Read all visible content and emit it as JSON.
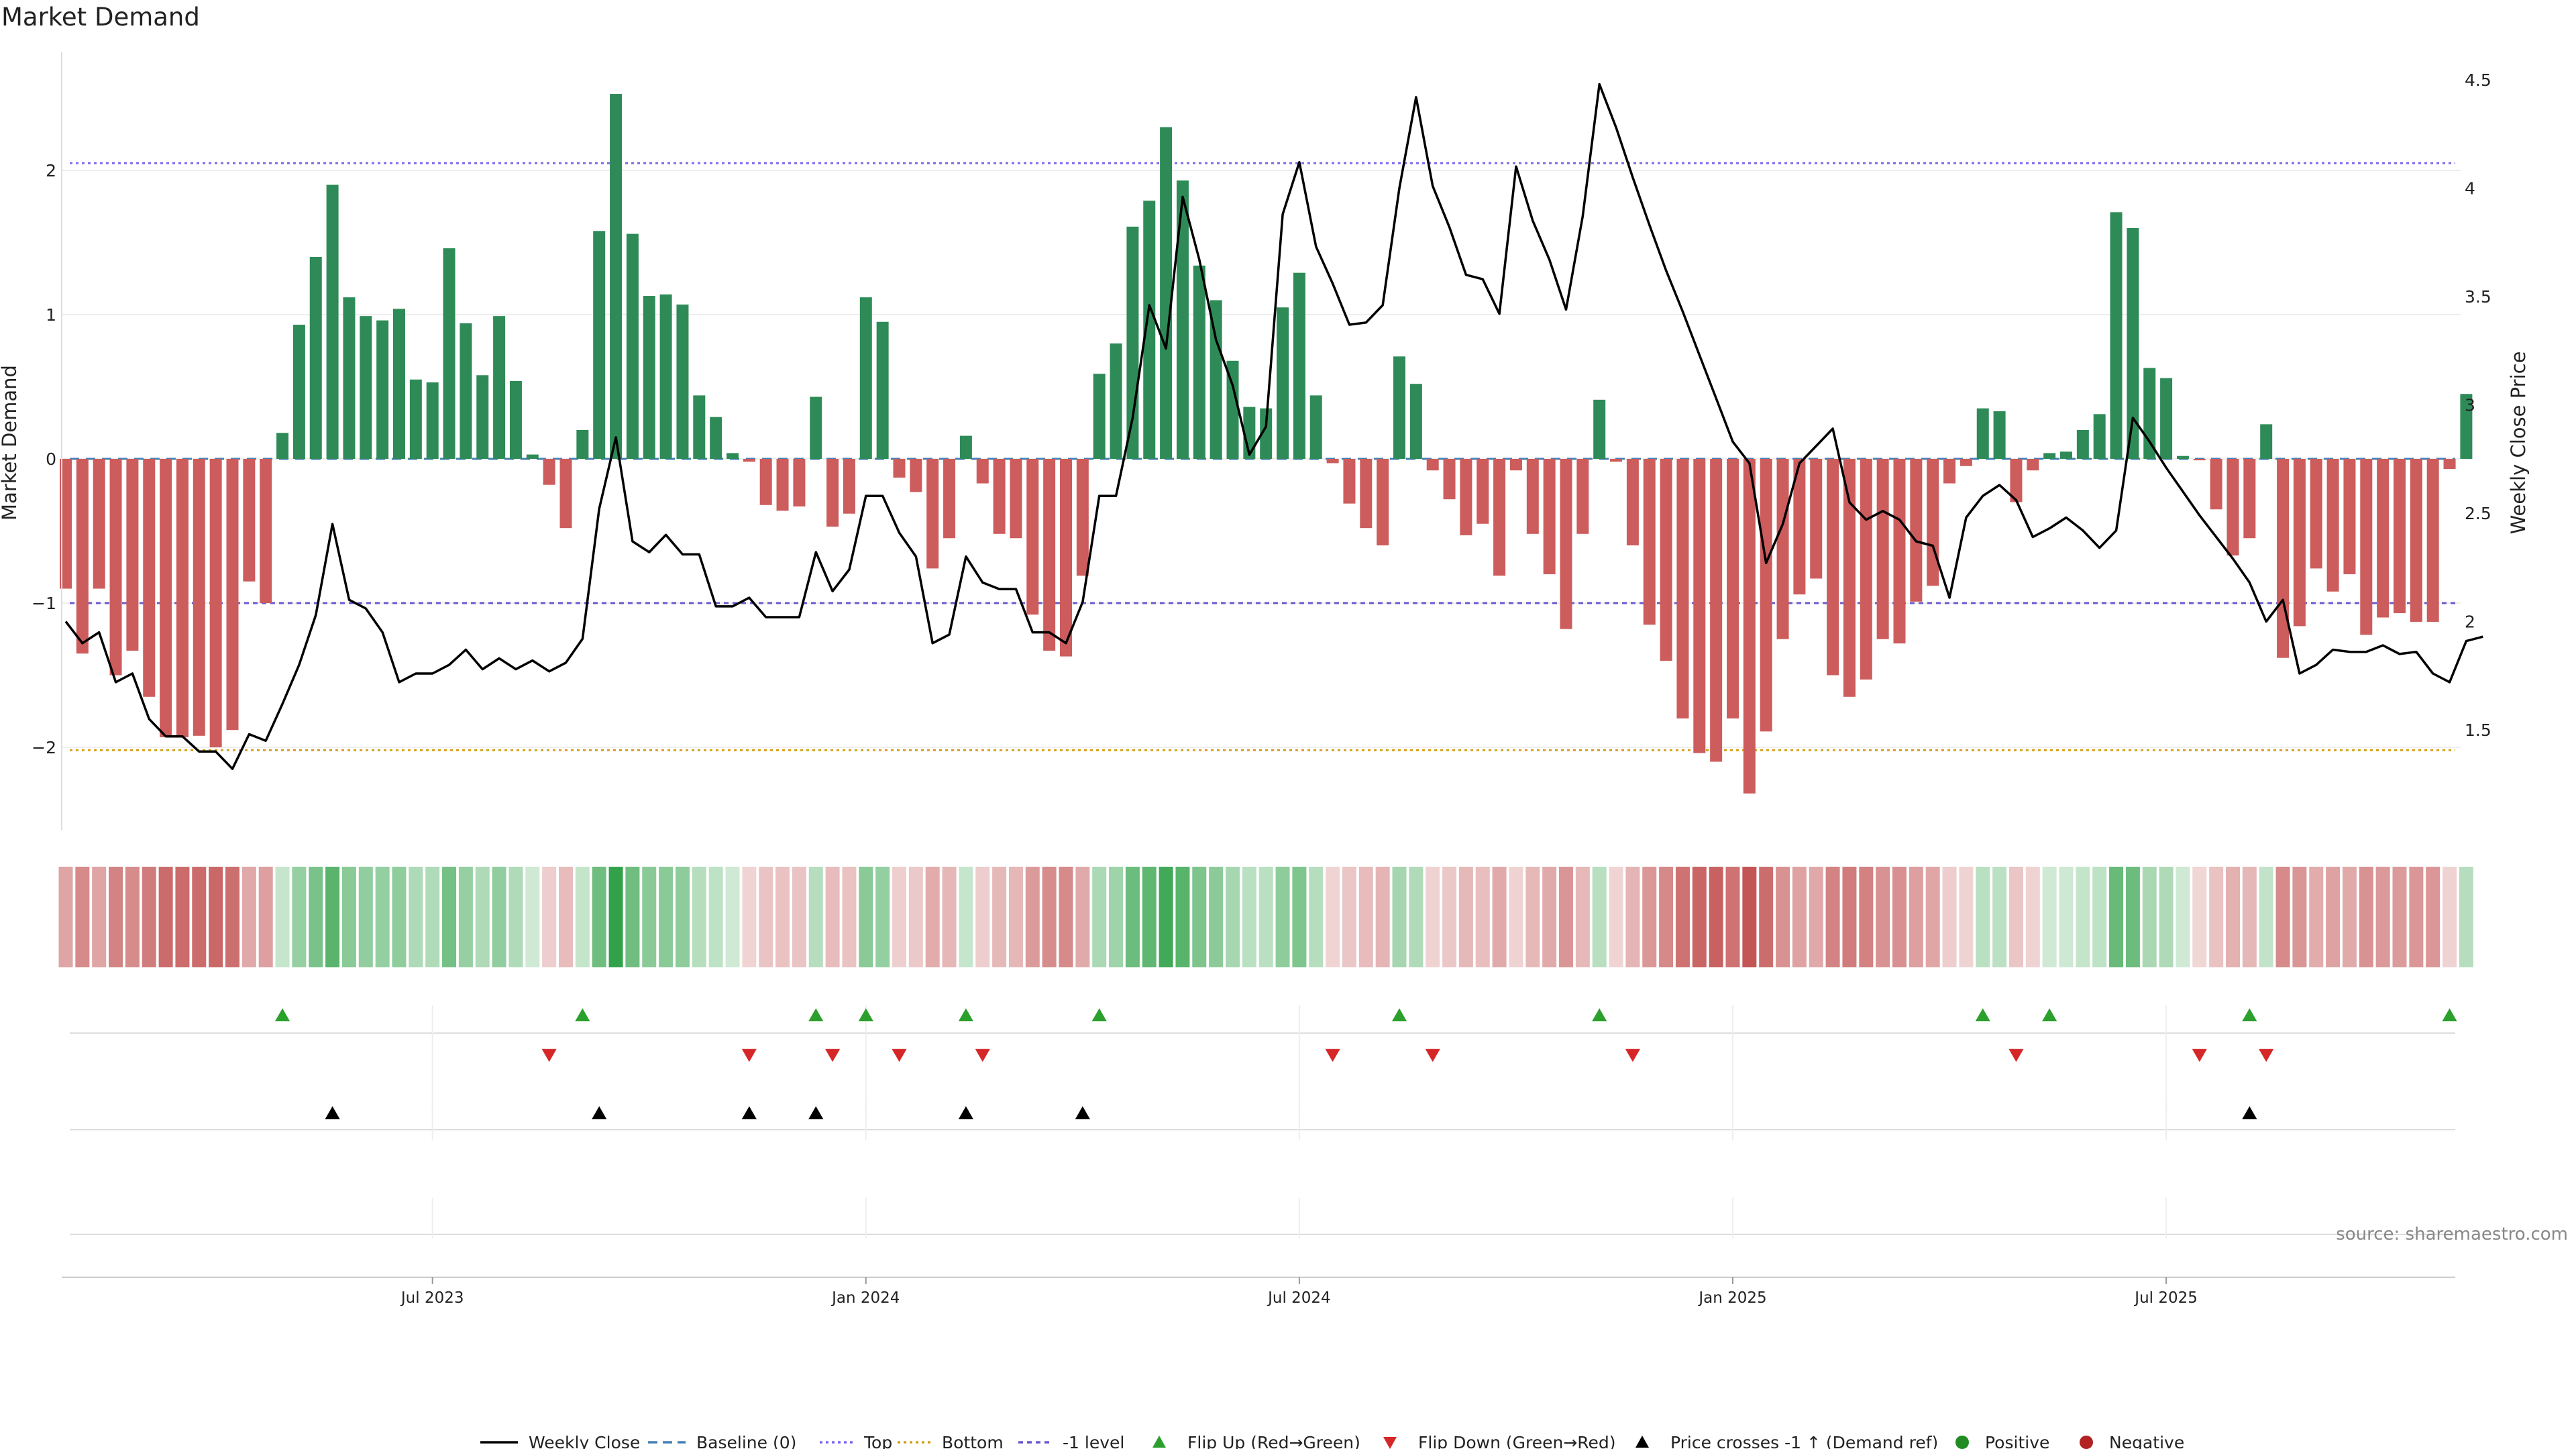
{
  "title": "Market Demand",
  "source": "source: sharemaestro.com",
  "chart_data": {
    "type": "bar",
    "y_label_left": "Market Demand",
    "y_label_right": "Weekly Close Price",
    "left_ylim": [
      -2.6,
      2.8
    ],
    "right_ylim": [
      1.1,
      4.6
    ],
    "left_ticks": [
      -2,
      -1,
      0,
      1,
      2
    ],
    "right_ticks": [
      1.5,
      2,
      2.5,
      3,
      3.5,
      4,
      4.5
    ],
    "x_ticks": [
      "Jul 2023",
      "Jan 2024",
      "Jul 2024",
      "Jan 2025",
      "Jul 2025"
    ],
    "x_tick_index": [
      22,
      48,
      74,
      100,
      126
    ],
    "reference_lines": {
      "top": 2.05,
      "bottom": -2.02,
      "minus_one": -1.0,
      "baseline": 0
    },
    "demand": [
      -0.9,
      -1.35,
      -0.9,
      -1.5,
      -1.33,
      -1.65,
      -1.93,
      -1.93,
      -1.92,
      -2.0,
      -1.88,
      -0.85,
      -1.0,
      0.18,
      0.93,
      1.4,
      1.9,
      1.12,
      0.99,
      0.96,
      1.04,
      0.55,
      0.53,
      1.46,
      0.94,
      0.58,
      0.99,
      0.54,
      0.03,
      -0.18,
      -0.48,
      0.2,
      1.58,
      2.53,
      1.56,
      1.13,
      1.14,
      1.07,
      0.44,
      0.29,
      0.04,
      -0.02,
      -0.32,
      -0.36,
      -0.33,
      0.43,
      -0.47,
      -0.38,
      1.12,
      0.95,
      -0.13,
      -0.23,
      -0.76,
      -0.55,
      0.16,
      -0.17,
      -0.52,
      -0.55,
      -1.08,
      -1.33,
      -1.37,
      -0.81,
      0.59,
      0.8,
      1.61,
      1.79,
      2.3,
      1.93,
      1.34,
      1.1,
      0.68,
      0.36,
      0.35,
      1.05,
      1.29,
      0.44,
      -0.03,
      -0.31,
      -0.48,
      -0.6,
      0.71,
      0.52,
      -0.08,
      -0.28,
      -0.53,
      -0.45,
      -0.81,
      -0.08,
      -0.52,
      -0.8,
      -1.18,
      -0.52,
      0.41,
      -0.02,
      -0.6,
      -1.15,
      -1.4,
      -1.8,
      -2.04,
      -2.1,
      -1.8,
      -2.32,
      -1.89,
      -1.25,
      -0.94,
      -0.83,
      -1.5,
      -1.65,
      -1.53,
      -1.25,
      -1.28,
      -0.99,
      -0.88,
      -0.17,
      -0.05,
      0.35,
      0.33,
      -0.3,
      -0.08,
      0.04,
      0.05,
      0.2,
      0.31,
      1.71,
      1.6,
      0.63,
      0.56,
      0.02,
      -0.01,
      -0.35,
      -0.67,
      -0.55,
      0.24,
      -1.38,
      -1.16,
      -0.76,
      -0.92,
      -0.8,
      -1.22,
      -1.1,
      -1.07,
      -1.13,
      -1.13,
      -0.07,
      0.45
    ],
    "price": [
      2.0,
      1.9,
      1.95,
      1.72,
      1.76,
      1.55,
      1.47,
      1.47,
      1.4,
      1.4,
      1.32,
      1.48,
      1.45,
      1.62,
      1.8,
      2.03,
      2.45,
      2.1,
      2.06,
      1.95,
      1.72,
      1.76,
      1.76,
      1.8,
      1.87,
      1.78,
      1.83,
      1.78,
      1.82,
      1.77,
      1.81,
      1.92,
      2.52,
      2.85,
      2.37,
      2.32,
      2.4,
      2.31,
      2.31,
      2.07,
      2.07,
      2.11,
      2.02,
      2.02,
      2.02,
      2.32,
      2.14,
      2.24,
      2.58,
      2.58,
      2.41,
      2.3,
      1.9,
      1.94,
      2.3,
      2.18,
      2.15,
      2.15,
      1.95,
      1.95,
      1.9,
      2.09,
      2.58,
      2.58,
      2.94,
      3.46,
      3.26,
      3.96,
      3.67,
      3.3,
      3.09,
      2.77,
      2.9,
      3.88,
      4.12,
      3.73,
      3.56,
      3.37,
      3.38,
      3.46,
      4.0,
      4.42,
      4.01,
      3.82,
      3.6,
      3.58,
      3.42,
      4.1,
      3.85,
      3.67,
      3.44,
      3.87,
      4.48,
      4.28,
      4.05,
      3.83,
      3.62,
      3.43,
      3.23,
      3.03,
      2.83,
      2.73,
      2.27,
      2.45,
      2.73,
      2.81,
      2.89,
      2.55,
      2.47,
      2.51,
      2.47,
      2.37,
      2.35,
      2.11,
      2.48,
      2.58,
      2.63,
      2.56,
      2.39,
      2.43,
      2.48,
      2.42,
      2.34,
      2.42,
      2.94,
      2.83,
      2.71,
      2.6,
      2.49,
      2.39,
      2.29,
      2.18,
      2.0,
      2.1,
      1.76,
      1.8,
      1.87,
      1.86,
      1.86,
      1.89,
      1.85,
      1.86,
      1.76,
      1.72,
      1.91,
      1.93
    ],
    "flip_up_index": [
      13,
      31,
      45,
      48,
      54,
      62,
      80,
      92,
      115,
      119,
      131,
      143
    ],
    "flip_down_index": [
      29,
      41,
      46,
      50,
      55,
      76,
      82,
      94,
      117,
      128,
      132
    ],
    "price_cross_index": [
      16,
      32,
      41,
      45,
      54,
      61,
      131
    ],
    "legend": [
      "Weekly Close",
      "Baseline (0)",
      "Top",
      "Bottom",
      "-1 level",
      "Flip Up (Red→Green)",
      "Flip Down (Green→Red)",
      "Price crosses -1 ↑ (Demand ref)",
      "Positive",
      "Negative"
    ]
  },
  "colors": {
    "green_bar": "#2e8b57",
    "red_bar": "#cd5c5c",
    "price_line": "#000000",
    "top_line": "#7b68ee",
    "bottom_line": "#d4a017",
    "minus_one_line": "#6a5acd",
    "baseline": "#4682b4",
    "flip_up": "#2ca02c",
    "flip_down": "#d62728",
    "positive_dot": "#228b22",
    "negative_dot": "#b22222"
  }
}
